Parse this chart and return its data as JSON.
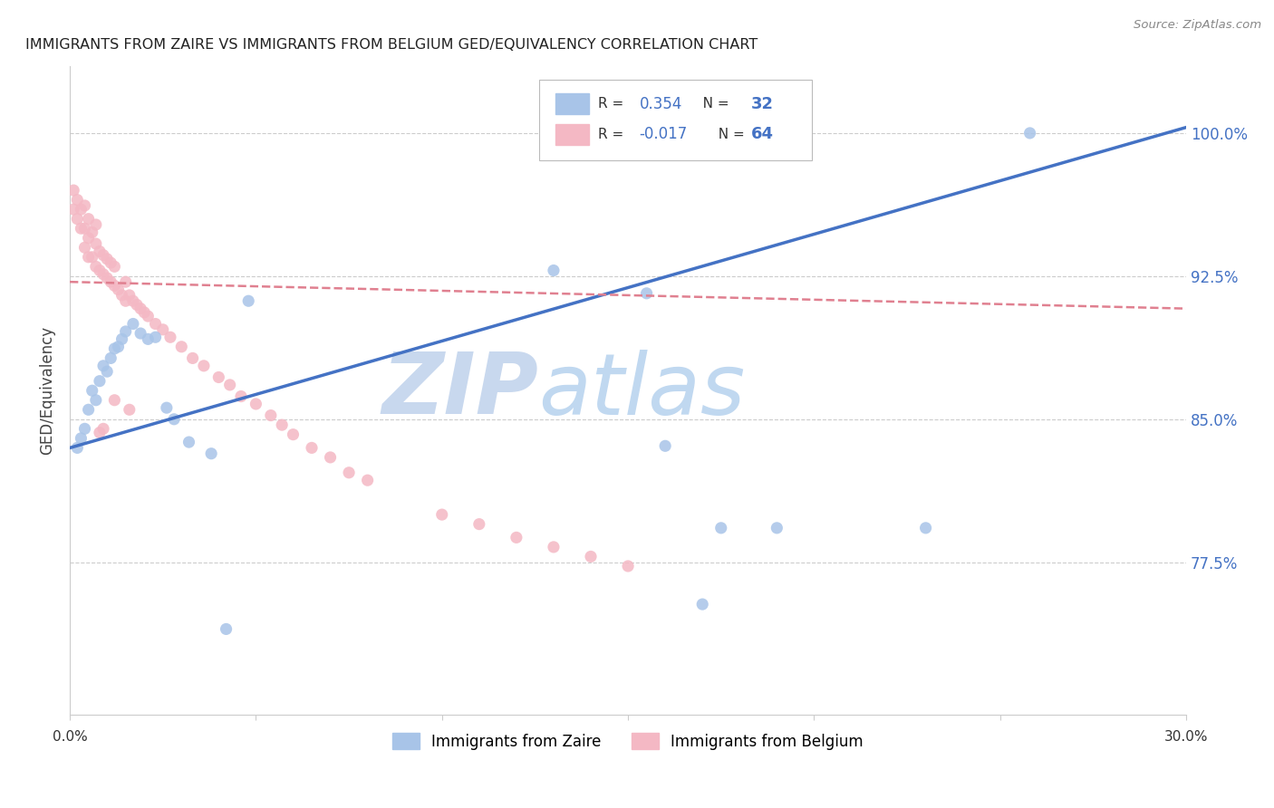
{
  "title": "IMMIGRANTS FROM ZAIRE VS IMMIGRANTS FROM BELGIUM GED/EQUIVALENCY CORRELATION CHART",
  "source": "Source: ZipAtlas.com",
  "ylabel": "GED/Equivalency",
  "ytick_labels": [
    "100.0%",
    "92.5%",
    "85.0%",
    "77.5%"
  ],
  "ytick_values": [
    1.0,
    0.925,
    0.85,
    0.775
  ],
  "xlim": [
    0.0,
    0.3
  ],
  "ylim": [
    0.695,
    1.035
  ],
  "legend_r_zaire": "0.354",
  "legend_n_zaire": "32",
  "legend_r_belgium": "-0.017",
  "legend_n_belgium": "64",
  "color_zaire": "#a8c4e8",
  "color_belgium": "#f4b8c4",
  "color_zaire_line": "#4472c4",
  "color_belgium_line": "#e08090",
  "color_r_value": "#4472c4",
  "watermark_zip": "ZIP",
  "watermark_atlas": "atlas",
  "watermark_color_zip": "#c8d8ee",
  "watermark_color_atlas": "#c8d8ee",
  "zaire_x": [
    0.002,
    0.003,
    0.004,
    0.005,
    0.006,
    0.007,
    0.008,
    0.009,
    0.01,
    0.011,
    0.012,
    0.013,
    0.014,
    0.015,
    0.017,
    0.019,
    0.021,
    0.023,
    0.026,
    0.028,
    0.032,
    0.038,
    0.042,
    0.048,
    0.13,
    0.155,
    0.16,
    0.17,
    0.175,
    0.19,
    0.23,
    0.258
  ],
  "zaire_y": [
    0.835,
    0.84,
    0.845,
    0.855,
    0.865,
    0.86,
    0.87,
    0.878,
    0.875,
    0.882,
    0.887,
    0.888,
    0.892,
    0.896,
    0.9,
    0.895,
    0.892,
    0.893,
    0.856,
    0.85,
    0.838,
    0.832,
    0.74,
    0.912,
    0.928,
    0.916,
    0.836,
    0.753,
    0.793,
    0.793,
    0.793,
    1.0
  ],
  "belgium_x": [
    0.001,
    0.001,
    0.002,
    0.002,
    0.003,
    0.003,
    0.004,
    0.004,
    0.004,
    0.005,
    0.005,
    0.005,
    0.006,
    0.006,
    0.007,
    0.007,
    0.007,
    0.008,
    0.008,
    0.009,
    0.009,
    0.01,
    0.01,
    0.011,
    0.011,
    0.012,
    0.012,
    0.013,
    0.014,
    0.015,
    0.015,
    0.016,
    0.017,
    0.018,
    0.019,
    0.02,
    0.021,
    0.023,
    0.025,
    0.027,
    0.03,
    0.033,
    0.036,
    0.04,
    0.043,
    0.046,
    0.05,
    0.054,
    0.057,
    0.06,
    0.065,
    0.07,
    0.075,
    0.08,
    0.1,
    0.11,
    0.12,
    0.13,
    0.14,
    0.15,
    0.008,
    0.009,
    0.012,
    0.016
  ],
  "belgium_y": [
    0.96,
    0.97,
    0.955,
    0.965,
    0.95,
    0.96,
    0.94,
    0.95,
    0.962,
    0.935,
    0.945,
    0.955,
    0.935,
    0.948,
    0.93,
    0.942,
    0.952,
    0.928,
    0.938,
    0.926,
    0.936,
    0.924,
    0.934,
    0.922,
    0.932,
    0.92,
    0.93,
    0.918,
    0.915,
    0.912,
    0.922,
    0.915,
    0.912,
    0.91,
    0.908,
    0.906,
    0.904,
    0.9,
    0.897,
    0.893,
    0.888,
    0.882,
    0.878,
    0.872,
    0.868,
    0.862,
    0.858,
    0.852,
    0.847,
    0.842,
    0.835,
    0.83,
    0.822,
    0.818,
    0.8,
    0.795,
    0.788,
    0.783,
    0.778,
    0.773,
    0.843,
    0.845,
    0.86,
    0.855
  ],
  "zaire_line_x": [
    0.0,
    0.3
  ],
  "zaire_line_y": [
    0.835,
    1.003
  ],
  "belgium_line_x": [
    0.0,
    0.3
  ],
  "belgium_line_y": [
    0.922,
    0.908
  ]
}
